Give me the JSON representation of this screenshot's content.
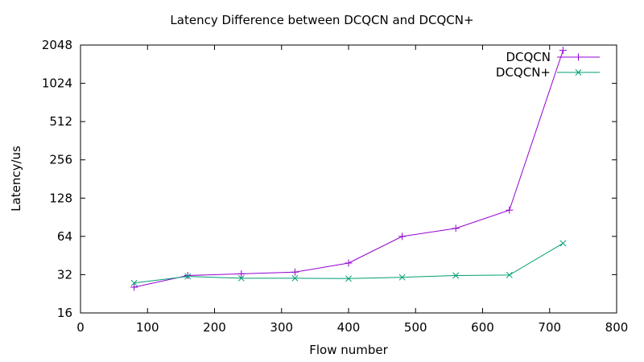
{
  "chart_data": {
    "type": "line",
    "title": "Latency Difference between DCQCN and DCQCN+",
    "xlabel": "Flow number",
    "ylabel": "Latency/us",
    "xlim": [
      0,
      800
    ],
    "ylim": [
      16,
      2048
    ],
    "yscale": "log2",
    "xticks": [
      "0",
      "100",
      "200",
      "300",
      "400",
      "500",
      "600",
      "700",
      "800"
    ],
    "yticks": [
      "16",
      "32",
      "64",
      "128",
      "256",
      "512",
      "1024",
      "2048"
    ],
    "legend_position": "top-right",
    "grid": false,
    "series": [
      {
        "name": "DCQCN",
        "color": "#9400d3",
        "marker": "plus",
        "x": [
          80,
          160,
          240,
          320,
          400,
          480,
          560,
          640,
          720
        ],
        "y": [
          25.5,
          31.5,
          32.5,
          33.5,
          39.5,
          64,
          74,
          103,
          1860
        ]
      },
      {
        "name": "DCQCN+",
        "color": "#009e73",
        "marker": "cross",
        "x": [
          80,
          160,
          240,
          320,
          400,
          480,
          560,
          640,
          720
        ],
        "y": [
          27.5,
          31,
          30,
          30,
          29.8,
          30.5,
          31.5,
          31.8,
          56.5
        ]
      }
    ]
  }
}
